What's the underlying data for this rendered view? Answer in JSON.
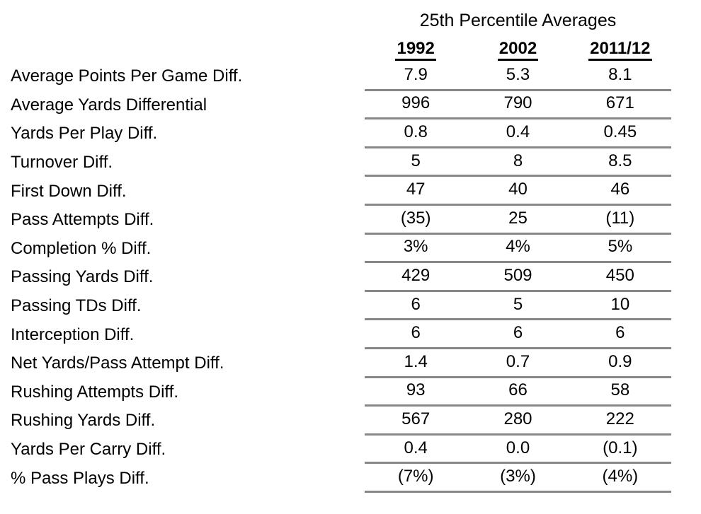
{
  "chart_data": {
    "type": "table",
    "title": "25th Percentile Averages",
    "columns": [
      "1992",
      "2002",
      "2011/12"
    ],
    "rows": [
      {
        "label": "Average Points Per Game Diff.",
        "values": [
          "7.9",
          "5.3",
          "8.1"
        ]
      },
      {
        "label": "Average Yards Differential",
        "values": [
          "996",
          "790",
          "671"
        ]
      },
      {
        "label": "Yards Per Play Diff.",
        "values": [
          "0.8",
          "0.4",
          "0.45"
        ]
      },
      {
        "label": "Turnover Diff.",
        "values": [
          "5",
          "8",
          "8.5"
        ]
      },
      {
        "label": "First Down Diff.",
        "values": [
          "47",
          "40",
          "46"
        ]
      },
      {
        "label": "Pass Attempts Diff.",
        "values": [
          "(35)",
          "25",
          "(11)"
        ]
      },
      {
        "label": "Completion % Diff.",
        "values": [
          "3%",
          "4%",
          "5%"
        ]
      },
      {
        "label": "Passing Yards Diff.",
        "values": [
          "429",
          "509",
          "450"
        ]
      },
      {
        "label": "Passing TDs Diff.",
        "values": [
          "6",
          "5",
          "10"
        ]
      },
      {
        "label": "Interception Diff.",
        "values": [
          "6",
          "6",
          "6"
        ]
      },
      {
        "label": "Net Yards/Pass Attempt Diff.",
        "values": [
          "1.4",
          "0.7",
          "0.9"
        ]
      },
      {
        "label": "Rushing Attempts Diff.",
        "values": [
          "93",
          "66",
          "58"
        ]
      },
      {
        "label": "Rushing Yards Diff.",
        "values": [
          "567",
          "280",
          "222"
        ]
      },
      {
        "label": "Yards Per Carry Diff.",
        "values": [
          "0.4",
          "0.0",
          "(0.1)"
        ]
      },
      {
        "label": "% Pass Plays Diff.",
        "values": [
          "(7%)",
          "(3%)",
          "(4%)"
        ]
      }
    ],
    "layout": {
      "grid": "horizontal-rules-under-each-data-row",
      "legend": "none",
      "negative_format": "parentheses"
    }
  },
  "colors": {
    "text": "#000000",
    "row_rule": "#878787",
    "header_underline": "#000000",
    "background": "#ffffff"
  }
}
